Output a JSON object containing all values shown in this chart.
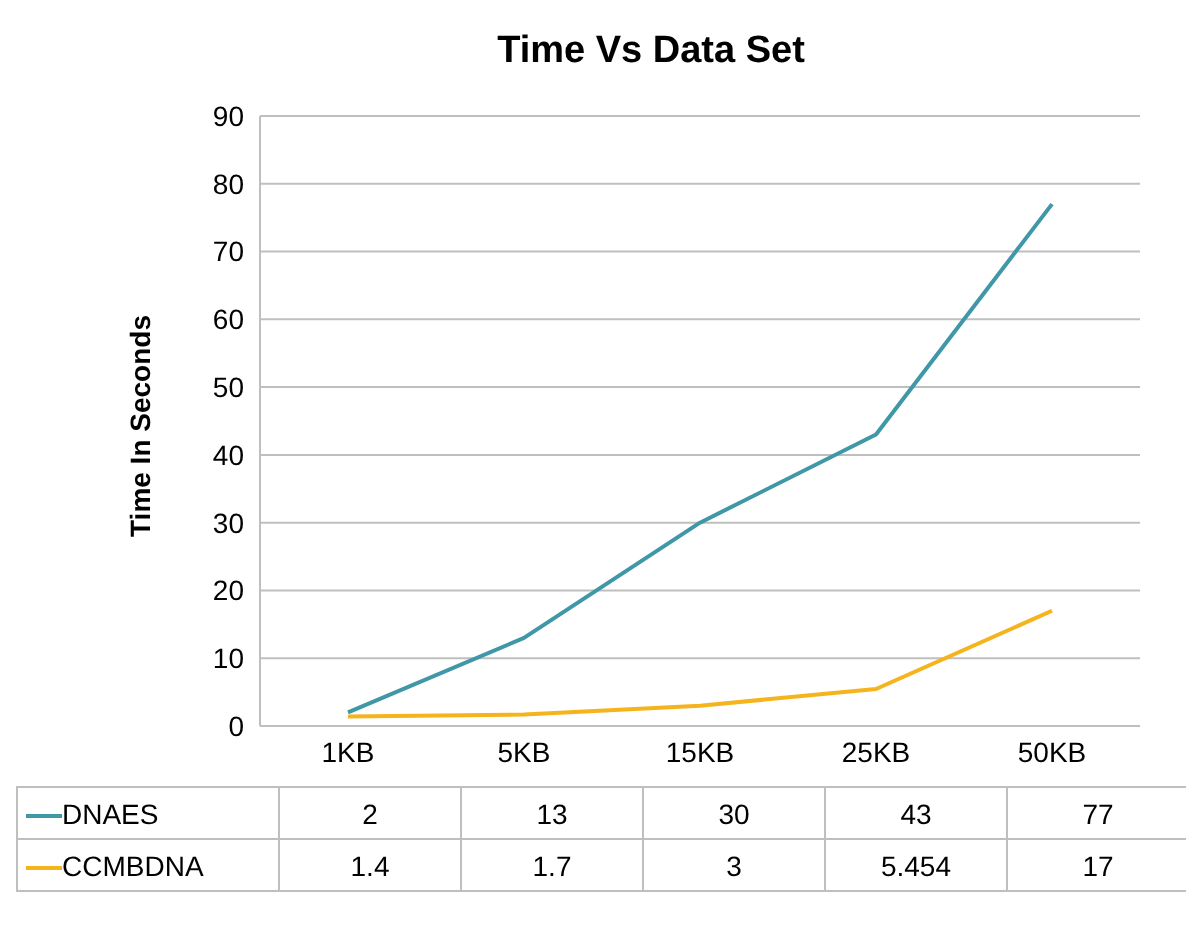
{
  "chart_data": {
    "type": "line",
    "title": "Time Vs Data Set",
    "ylabel": "Time In Seconds",
    "categories": [
      "1KB",
      "5KB",
      "15KB",
      "25KB",
      "50KB"
    ],
    "series": [
      {
        "name": "DNAES",
        "color": "#3f97a8",
        "values": [
          2,
          13,
          30,
          43,
          77
        ]
      },
      {
        "name": "CCMBDNA",
        "color": "#f5b31c",
        "values": [
          1.4,
          1.7,
          3,
          5.454,
          17
        ]
      }
    ],
    "ylim": [
      0,
      90
    ],
    "yticks": [
      0,
      10,
      20,
      30,
      40,
      50,
      60,
      70,
      80,
      90
    ],
    "grid": "y",
    "legend": "bottom",
    "data_labels": true,
    "marker": "none"
  }
}
